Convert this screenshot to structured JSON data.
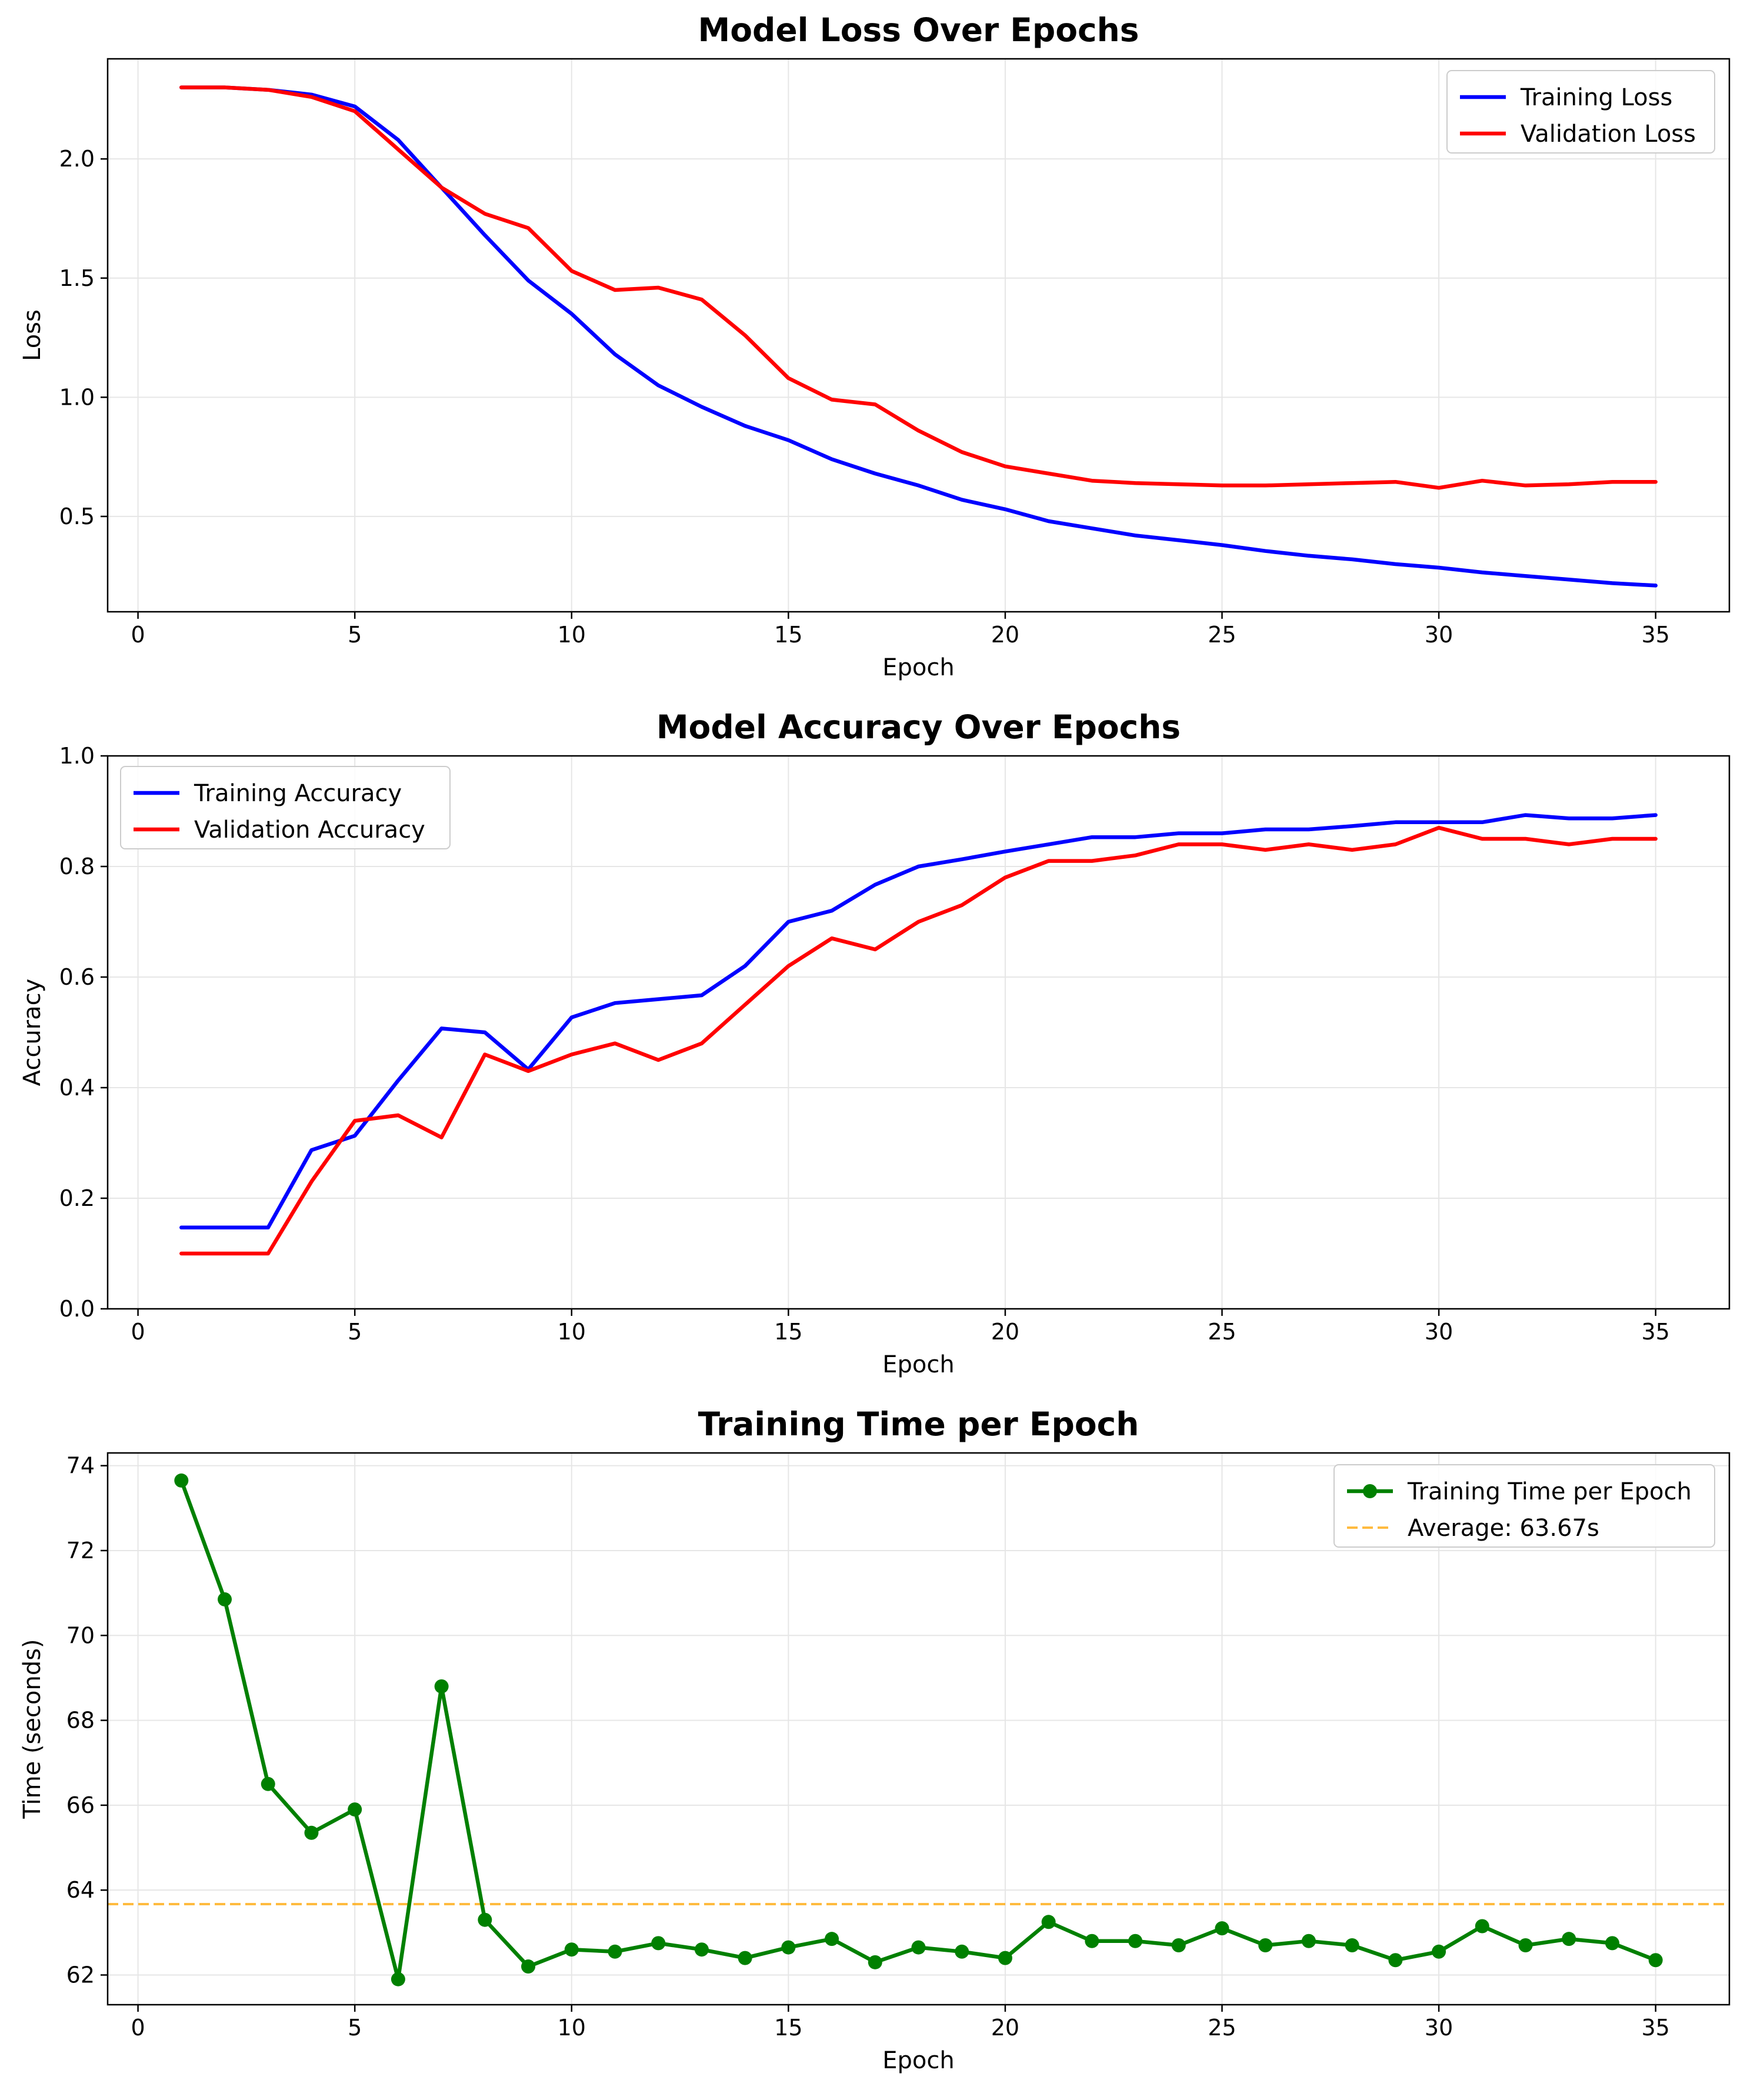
{
  "chart_data": [
    {
      "type": "line",
      "title": "Model Loss Over Epochs",
      "xlabel": "Epoch",
      "ylabel": "Loss",
      "xlim": [
        -0.7,
        36.7
      ],
      "ylim": [
        0.1,
        2.42
      ],
      "xticks": [
        0,
        5,
        10,
        15,
        20,
        25,
        30,
        35
      ],
      "yticks": [
        0.5,
        1.0,
        1.5,
        2.0
      ],
      "ytick_labels": [
        "0.5",
        "1.0",
        "1.5",
        "2.0"
      ],
      "grid": true,
      "legend_position": "top-right",
      "x": [
        1,
        2,
        3,
        4,
        5,
        6,
        7,
        8,
        9,
        10,
        11,
        12,
        13,
        14,
        15,
        16,
        17,
        18,
        19,
        20,
        21,
        22,
        23,
        24,
        25,
        26,
        27,
        28,
        29,
        30,
        31,
        32,
        33,
        34,
        35
      ],
      "series": [
        {
          "name": "Training Loss",
          "color": "#0000ff",
          "values": [
            2.3,
            2.3,
            2.29,
            2.27,
            2.22,
            2.08,
            1.88,
            1.68,
            1.49,
            1.35,
            1.18,
            1.05,
            0.96,
            0.88,
            0.82,
            0.74,
            0.68,
            0.63,
            0.57,
            0.53,
            0.48,
            0.45,
            0.42,
            0.4,
            0.38,
            0.355,
            0.335,
            0.32,
            0.3,
            0.285,
            0.265,
            0.25,
            0.235,
            0.22,
            0.21
          ]
        },
        {
          "name": "Validation Loss",
          "color": "#ff0000",
          "values": [
            2.3,
            2.3,
            2.29,
            2.26,
            2.2,
            2.04,
            1.88,
            1.77,
            1.71,
            1.53,
            1.45,
            1.46,
            1.41,
            1.26,
            1.08,
            0.99,
            0.97,
            0.86,
            0.77,
            0.71,
            0.68,
            0.65,
            0.64,
            0.635,
            0.63,
            0.63,
            0.635,
            0.64,
            0.645,
            0.62,
            0.65,
            0.63,
            0.635,
            0.645,
            0.645
          ]
        }
      ]
    },
    {
      "type": "line",
      "title": "Model Accuracy Over Epochs",
      "xlabel": "Epoch",
      "ylabel": "Accuracy",
      "xlim": [
        -0.7,
        36.7
      ],
      "ylim": [
        0.0,
        1.0
      ],
      "xticks": [
        0,
        5,
        10,
        15,
        20,
        25,
        30,
        35
      ],
      "yticks": [
        0.0,
        0.2,
        0.4,
        0.6,
        0.8,
        1.0
      ],
      "ytick_labels": [
        "0.0",
        "0.2",
        "0.4",
        "0.6",
        "0.8",
        "1.0"
      ],
      "grid": true,
      "legend_position": "top-left",
      "x": [
        1,
        2,
        3,
        4,
        5,
        6,
        7,
        8,
        9,
        10,
        11,
        12,
        13,
        14,
        15,
        16,
        17,
        18,
        19,
        20,
        21,
        22,
        23,
        24,
        25,
        26,
        27,
        28,
        29,
        30,
        31,
        32,
        33,
        34,
        35
      ],
      "series": [
        {
          "name": "Training Accuracy",
          "color": "#0000ff",
          "values": [
            0.147,
            0.147,
            0.147,
            0.287,
            0.313,
            0.413,
            0.507,
            0.5,
            0.433,
            0.527,
            0.553,
            0.56,
            0.567,
            0.62,
            0.7,
            0.72,
            0.767,
            0.8,
            0.813,
            0.827,
            0.84,
            0.853,
            0.853,
            0.86,
            0.86,
            0.867,
            0.867,
            0.873,
            0.88,
            0.88,
            0.88,
            0.893,
            0.887,
            0.887,
            0.893
          ]
        },
        {
          "name": "Validation Accuracy",
          "color": "#ff0000",
          "values": [
            0.1,
            0.1,
            0.1,
            0.23,
            0.34,
            0.35,
            0.31,
            0.46,
            0.43,
            0.46,
            0.48,
            0.45,
            0.48,
            0.55,
            0.62,
            0.67,
            0.65,
            0.7,
            0.73,
            0.78,
            0.81,
            0.81,
            0.82,
            0.84,
            0.84,
            0.83,
            0.84,
            0.83,
            0.84,
            0.87,
            0.85,
            0.85,
            0.84,
            0.85,
            0.85
          ]
        }
      ]
    },
    {
      "type": "line",
      "title": "Training Time per Epoch",
      "xlabel": "Epoch",
      "ylabel": "Time (seconds)",
      "xlim": [
        -0.7,
        36.7
      ],
      "ylim": [
        61.3,
        74.3
      ],
      "xticks": [
        0,
        5,
        10,
        15,
        20,
        25,
        30,
        35
      ],
      "yticks": [
        62,
        64,
        66,
        68,
        70,
        72,
        74
      ],
      "ytick_labels": [
        "62",
        "64",
        "66",
        "68",
        "70",
        "72",
        "74"
      ],
      "grid": true,
      "legend_position": "top-right",
      "x": [
        1,
        2,
        3,
        4,
        5,
        6,
        7,
        8,
        9,
        10,
        11,
        12,
        13,
        14,
        15,
        16,
        17,
        18,
        19,
        20,
        21,
        22,
        23,
        24,
        25,
        26,
        27,
        28,
        29,
        30,
        31,
        32,
        33,
        34,
        35
      ],
      "series": [
        {
          "name": "Training Time per Epoch",
          "color": "#008000",
          "marker": "circle",
          "values": [
            73.65,
            70.85,
            66.5,
            65.35,
            65.9,
            61.9,
            68.8,
            63.3,
            62.2,
            62.6,
            62.55,
            62.75,
            62.6,
            62.4,
            62.65,
            62.85,
            62.3,
            62.65,
            62.55,
            62.4,
            63.25,
            62.8,
            62.8,
            62.7,
            63.1,
            62.7,
            62.8,
            62.7,
            62.35,
            62.55,
            63.15,
            62.7,
            62.85,
            62.75,
            62.35
          ]
        }
      ],
      "reference_lines": [
        {
          "name": "Average: 63.67s",
          "value": 63.67,
          "color": "#ffa500",
          "style": "dashed"
        }
      ]
    }
  ]
}
